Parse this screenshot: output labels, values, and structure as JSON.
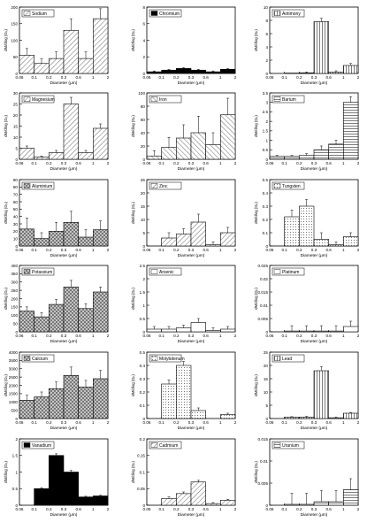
{
  "figure": {
    "x_ticks": [
      "0.06",
      "0.1",
      "0.2",
      "0.3",
      "0.6",
      "1",
      "2"
    ],
    "xlabel": "Diameter (μm)",
    "ylabel": "dM/dlog (Dₚ)"
  },
  "chart_data": [
    {
      "type": "bar",
      "title": "Sodium",
      "fill": "hatch-diag",
      "ylim": [
        0,
        200
      ],
      "yticks": [
        "0",
        "50",
        "100",
        "150",
        "200"
      ],
      "values": [
        55,
        30,
        45,
        130,
        45,
        165
      ],
      "errors": [
        20,
        15,
        20,
        35,
        20,
        30
      ]
    },
    {
      "type": "bar",
      "title": "Chromium",
      "fill": "solid-black",
      "ylim": [
        0,
        8
      ],
      "yticks": [
        "0",
        "2",
        "4",
        "6",
        "8"
      ],
      "values": [
        0.2,
        0.4,
        0.6,
        0.4,
        0.2,
        0.5
      ],
      "errors": [
        0.1,
        0.1,
        0.1,
        0.1,
        0.1,
        0.1
      ]
    },
    {
      "type": "bar",
      "title": "Antimony",
      "fill": "hatch-vert",
      "ylim": [
        0,
        10
      ],
      "yticks": [
        "0",
        "2",
        "4",
        "6",
        "8",
        "10"
      ],
      "values": [
        0,
        0.05,
        0.1,
        7.8,
        0.2,
        1.2
      ],
      "errors": [
        0,
        0,
        0.1,
        0.5,
        0.2,
        0.3
      ]
    },
    {
      "type": "bar",
      "title": "Magnesium",
      "fill": "hatch-diag",
      "ylim": [
        0,
        30
      ],
      "yticks": [
        "0",
        "5",
        "10",
        "15",
        "20",
        "25",
        "30"
      ],
      "values": [
        5,
        1,
        3,
        25,
        3,
        14
      ],
      "errors": [
        1,
        0.5,
        1,
        3,
        1,
        2
      ]
    },
    {
      "type": "bar",
      "title": "Iron",
      "fill": "hatch-diag2",
      "ylim": [
        0,
        100
      ],
      "yticks": [
        "0",
        "20",
        "40",
        "60",
        "80",
        "100"
      ],
      "values": [
        5,
        18,
        32,
        40,
        22,
        67
      ],
      "errors": [
        8,
        15,
        20,
        25,
        18,
        25
      ]
    },
    {
      "type": "bar",
      "title": "Barium",
      "fill": "hatch-horiz",
      "ylim": [
        0,
        3.5
      ],
      "yticks": [
        "0",
        "0.5",
        "1",
        "1.5",
        "2",
        "2.5",
        "3",
        "3.5"
      ],
      "values": [
        0.15,
        0.15,
        0.2,
        0.5,
        0.8,
        3.0
      ],
      "errors": [
        0.05,
        0.05,
        0.1,
        0.2,
        0.2,
        0.3
      ]
    },
    {
      "type": "bar",
      "title": "Aluminium",
      "fill": "crosshatch",
      "ylim": [
        0,
        90
      ],
      "yticks": [
        "0",
        "10",
        "20",
        "30",
        "40",
        "50",
        "60",
        "70",
        "80",
        "90"
      ],
      "values": [
        23,
        10,
        20,
        32,
        12,
        22
      ],
      "errors": [
        15,
        8,
        12,
        15,
        10,
        12
      ]
    },
    {
      "type": "bar",
      "title": "Zinc",
      "fill": "hatch-diag",
      "ylim": [
        0,
        25
      ],
      "yticks": [
        "0",
        "5",
        "10",
        "15",
        "20",
        "25"
      ],
      "values": [
        0,
        3,
        4.5,
        9,
        0.5,
        5
      ],
      "errors": [
        0,
        2,
        2,
        3,
        1,
        2
      ]
    },
    {
      "type": "bar",
      "title": "Tungsten",
      "fill": "dots",
      "ylim": [
        0,
        0.5
      ],
      "yticks": [
        "0",
        "0.1",
        "0.2",
        "0.3",
        "0.4",
        "0.5"
      ],
      "values": [
        0,
        0.22,
        0.3,
        0.05,
        0.01,
        0.07
      ],
      "errors": [
        0,
        0.05,
        0.05,
        0.05,
        0.02,
        0.03
      ]
    },
    {
      "type": "bar",
      "title": "Potassium",
      "fill": "crosshatch",
      "ylim": [
        0,
        400
      ],
      "yticks": [
        "0",
        "50",
        "100",
        "150",
        "200",
        "250",
        "300",
        "350",
        "400"
      ],
      "values": [
        125,
        90,
        165,
        270,
        140,
        240
      ],
      "errors": [
        25,
        25,
        30,
        40,
        30,
        30
      ]
    },
    {
      "type": "bar",
      "title": "Arsenic",
      "fill": "open",
      "ylim": [
        0,
        2.5
      ],
      "yticks": [
        "0",
        "0.5",
        "1",
        "1.5",
        "2",
        "2.5"
      ],
      "values": [
        0.1,
        0.1,
        0.15,
        0.35,
        0.05,
        0.1
      ],
      "errors": [
        0.1,
        0.1,
        0.1,
        0.15,
        0.1,
        0.1
      ]
    },
    {
      "type": "bar",
      "title": "Platinum",
      "fill": "open",
      "ylim": [
        0,
        0.025
      ],
      "yticks": [
        "0",
        "0.005",
        "0.01",
        "0.015",
        "0.02",
        "0.025"
      ],
      "values": [
        0,
        0.0003,
        0.0003,
        0.0003,
        0.0003,
        0.002
      ],
      "errors": [
        0,
        0.002,
        0.002,
        0.002,
        0.002,
        0.002
      ]
    },
    {
      "type": "bar",
      "title": "Calcium",
      "fill": "crosshatch",
      "ylim": [
        0,
        4000
      ],
      "yticks": [
        "0",
        "500",
        "1000",
        "1500",
        "2000",
        "2500",
        "3000",
        "3500",
        "4000"
      ],
      "values": [
        1100,
        1300,
        1800,
        2600,
        1900,
        2400
      ],
      "errors": [
        300,
        300,
        400,
        500,
        400,
        500
      ]
    },
    {
      "type": "bar",
      "title": "Molybdenum",
      "fill": "dots",
      "ylim": [
        0,
        0.5
      ],
      "yticks": [
        "0",
        "0.1",
        "0.2",
        "0.3",
        "0.4",
        "0.5"
      ],
      "values": [
        0,
        0.26,
        0.4,
        0.06,
        0,
        0.03
      ],
      "errors": [
        0,
        0.03,
        0.03,
        0.02,
        0,
        0.01
      ]
    },
    {
      "type": "bar",
      "title": "Lead",
      "fill": "hatch-vert",
      "ylim": [
        0,
        25
      ],
      "yticks": [
        "0",
        "5",
        "10",
        "15",
        "20",
        "25"
      ],
      "values": [
        0,
        0.5,
        0.5,
        18,
        0.3,
        2
      ],
      "errors": [
        0,
        0.2,
        0.3,
        1.5,
        0.2,
        0.3
      ]
    },
    {
      "type": "bar",
      "title": "Vanadium",
      "fill": "solid-black",
      "ylim": [
        0,
        2
      ],
      "yticks": [
        "0",
        "0.5",
        "1",
        "1.5",
        "2"
      ],
      "values": [
        0,
        0.5,
        1.5,
        1.0,
        0.25,
        0.28
      ],
      "errors": [
        0,
        0.03,
        0.05,
        0.05,
        0.02,
        0.02
      ]
    },
    {
      "type": "bar",
      "title": "Cadmium",
      "fill": "hatch-diag",
      "ylim": [
        0,
        0.2
      ],
      "yticks": [
        "0",
        "0.05",
        "0.1",
        "0.15",
        "0.2"
      ],
      "values": [
        0,
        0.02,
        0.035,
        0.07,
        0.005,
        0.015
      ],
      "errors": [
        0,
        0.005,
        0.005,
        0.005,
        0.003,
        0.003
      ]
    },
    {
      "type": "bar",
      "title": "Uranium",
      "fill": "hatch-horiz",
      "ylim": [
        0,
        0.015
      ],
      "yticks": [
        "0",
        "0.005",
        "0.01",
        "0.015"
      ],
      "values": [
        0,
        0.0002,
        0.0002,
        0.0008,
        0.0008,
        0.0035
      ],
      "errors": [
        0,
        0.0025,
        0.0025,
        0.0025,
        0.0025,
        0.0025
      ]
    }
  ]
}
